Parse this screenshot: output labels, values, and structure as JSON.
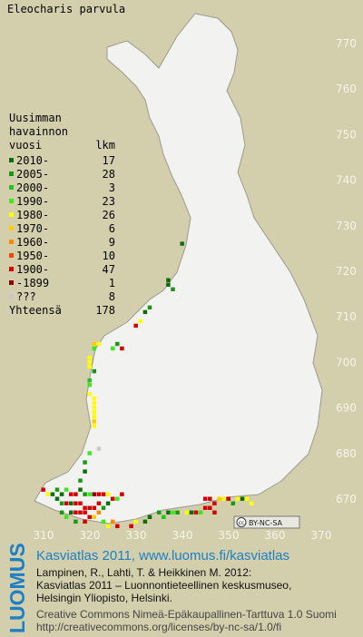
{
  "title": "Eleocharis parvula",
  "legend": {
    "heading": [
      "Uusimman",
      "havainnon",
      "vuosi"
    ],
    "count_heading": "lkm",
    "classes": [
      {
        "label": "2010-",
        "color": "#0b6e0b",
        "count": 17
      },
      {
        "label": "2005-",
        "color": "#169a16",
        "count": 28
      },
      {
        "label": "2000-",
        "color": "#22c422",
        "count": 3
      },
      {
        "label": "1990-",
        "color": "#3ee81a",
        "count": 23
      },
      {
        "label": "1980-",
        "color": "#ffff00",
        "count": 26
      },
      {
        "label": "1970-",
        "color": "#ffcc00",
        "count": 6
      },
      {
        "label": "1960-",
        "color": "#ff8800",
        "count": 9
      },
      {
        "label": "1950-",
        "color": "#ff4400",
        "count": 10
      },
      {
        "label": "1900-",
        "color": "#d40000",
        "count": 47
      },
      {
        "label": "-1899",
        "color": "#8c0000",
        "count": 1
      },
      {
        "label": "???",
        "color": "#c8c8c8",
        "count": 8
      }
    ],
    "total_label": "Yhteensä",
    "total": 178
  },
  "xlim": [
    310,
    370
  ],
  "ylim": [
    670,
    770
  ],
  "xticks": [
    310,
    320,
    330,
    340,
    350,
    360,
    370
  ],
  "yticks": [
    670,
    680,
    690,
    700,
    710,
    720,
    730,
    740,
    750,
    760,
    770
  ],
  "squares": [
    [
      340,
      726,
      0
    ],
    [
      337,
      718,
      0
    ],
    [
      337,
      717,
      0
    ],
    [
      338,
      716,
      1
    ],
    [
      333,
      712,
      1
    ],
    [
      332,
      711,
      0
    ],
    [
      331,
      709,
      4
    ],
    [
      330,
      708,
      8
    ],
    [
      326,
      704,
      1
    ],
    [
      327,
      703,
      8
    ],
    [
      325,
      703,
      3
    ],
    [
      322,
      704,
      4
    ],
    [
      321,
      704,
      5
    ],
    [
      321,
      703,
      3
    ],
    [
      320,
      701,
      4
    ],
    [
      320,
      700,
      4
    ],
    [
      320,
      699,
      4
    ],
    [
      321,
      698,
      1
    ],
    [
      320,
      696,
      2
    ],
    [
      320,
      695,
      3
    ],
    [
      320,
      693,
      4
    ],
    [
      321,
      692,
      4
    ],
    [
      321,
      691,
      4
    ],
    [
      321,
      690,
      4
    ],
    [
      321,
      689,
      4
    ],
    [
      321,
      688,
      4
    ],
    [
      321,
      687,
      5
    ],
    [
      321,
      686,
      4
    ],
    [
      322,
      681,
      10
    ],
    [
      320,
      680,
      3
    ],
    [
      319,
      678,
      1
    ],
    [
      319,
      676,
      0
    ],
    [
      318,
      674,
      1
    ],
    [
      310,
      672,
      8
    ],
    [
      311,
      671,
      4
    ],
    [
      312,
      671,
      0
    ],
    [
      313,
      672,
      1
    ],
    [
      314,
      671,
      0
    ],
    [
      315,
      672,
      3
    ],
    [
      316,
      671,
      8
    ],
    [
      317,
      671,
      8
    ],
    [
      318,
      672,
      0
    ],
    [
      319,
      671,
      1
    ],
    [
      320,
      671,
      3
    ],
    [
      321,
      671,
      9
    ],
    [
      322,
      671,
      8
    ],
    [
      323,
      671,
      8
    ],
    [
      324,
      671,
      4
    ],
    [
      325,
      670,
      8
    ],
    [
      313,
      670,
      0
    ],
    [
      314,
      669,
      1
    ],
    [
      315,
      669,
      8
    ],
    [
      316,
      669,
      0
    ],
    [
      317,
      669,
      8
    ],
    [
      318,
      669,
      8
    ],
    [
      319,
      668,
      8
    ],
    [
      320,
      668,
      8
    ],
    [
      321,
      668,
      8
    ],
    [
      322,
      669,
      8
    ],
    [
      323,
      668,
      1
    ],
    [
      324,
      669,
      0
    ],
    [
      326,
      670,
      3
    ],
    [
      327,
      671,
      8
    ],
    [
      316,
      667,
      0
    ],
    [
      317,
      667,
      8
    ],
    [
      318,
      667,
      8
    ],
    [
      319,
      667,
      8
    ],
    [
      320,
      666,
      8
    ],
    [
      321,
      666,
      5
    ],
    [
      322,
      667,
      6
    ],
    [
      314,
      667,
      1
    ],
    [
      315,
      666,
      3
    ],
    [
      317,
      665,
      1
    ],
    [
      319,
      665,
      8
    ],
    [
      323,
      665,
      3
    ],
    [
      325,
      665,
      6
    ],
    [
      324,
      664,
      4
    ],
    [
      326,
      664,
      8
    ],
    [
      329,
      664,
      8
    ],
    [
      330,
      665,
      4
    ],
    [
      332,
      665,
      0
    ],
    [
      333,
      666,
      0
    ],
    [
      335,
      667,
      1
    ],
    [
      336,
      666,
      2
    ],
    [
      337,
      667,
      0
    ],
    [
      338,
      667,
      3
    ],
    [
      339,
      667,
      1
    ],
    [
      341,
      667,
      4
    ],
    [
      342,
      667,
      0
    ],
    [
      343,
      667,
      8
    ],
    [
      344,
      667,
      3
    ],
    [
      345,
      668,
      8
    ],
    [
      346,
      668,
      8
    ],
    [
      347,
      669,
      8
    ],
    [
      348,
      670,
      5
    ],
    [
      349,
      670,
      4
    ],
    [
      350,
      670,
      8
    ],
    [
      351,
      669,
      1
    ],
    [
      352,
      670,
      4
    ],
    [
      353,
      670,
      0
    ],
    [
      354,
      670,
      4
    ],
    [
      355,
      669,
      4
    ],
    [
      346,
      670,
      8
    ],
    [
      345,
      670,
      8
    ],
    [
      347,
      667,
      8
    ]
  ],
  "badge": "BY-NC-SA",
  "footer": {
    "side_logo": "LUOMUS",
    "title": "Kasviatlas 2011, www.luomus.fi/kasviatlas",
    "citation": [
      "Lampinen, R., Lahti, T. & Heikkinen M. 2012:",
      "Kasviatlas 2011 – Luonnontieteellinen keskusmuseo,",
      "Helsingin Yliopisto, Helsinki."
    ],
    "license": [
      "Creative Commons Nimeä-Epäkaupallinen-Tarttuva 1.0 Suomi",
      "http://creativecommons.org/licenses/by-nc-sa/1.0/fi"
    ]
  }
}
